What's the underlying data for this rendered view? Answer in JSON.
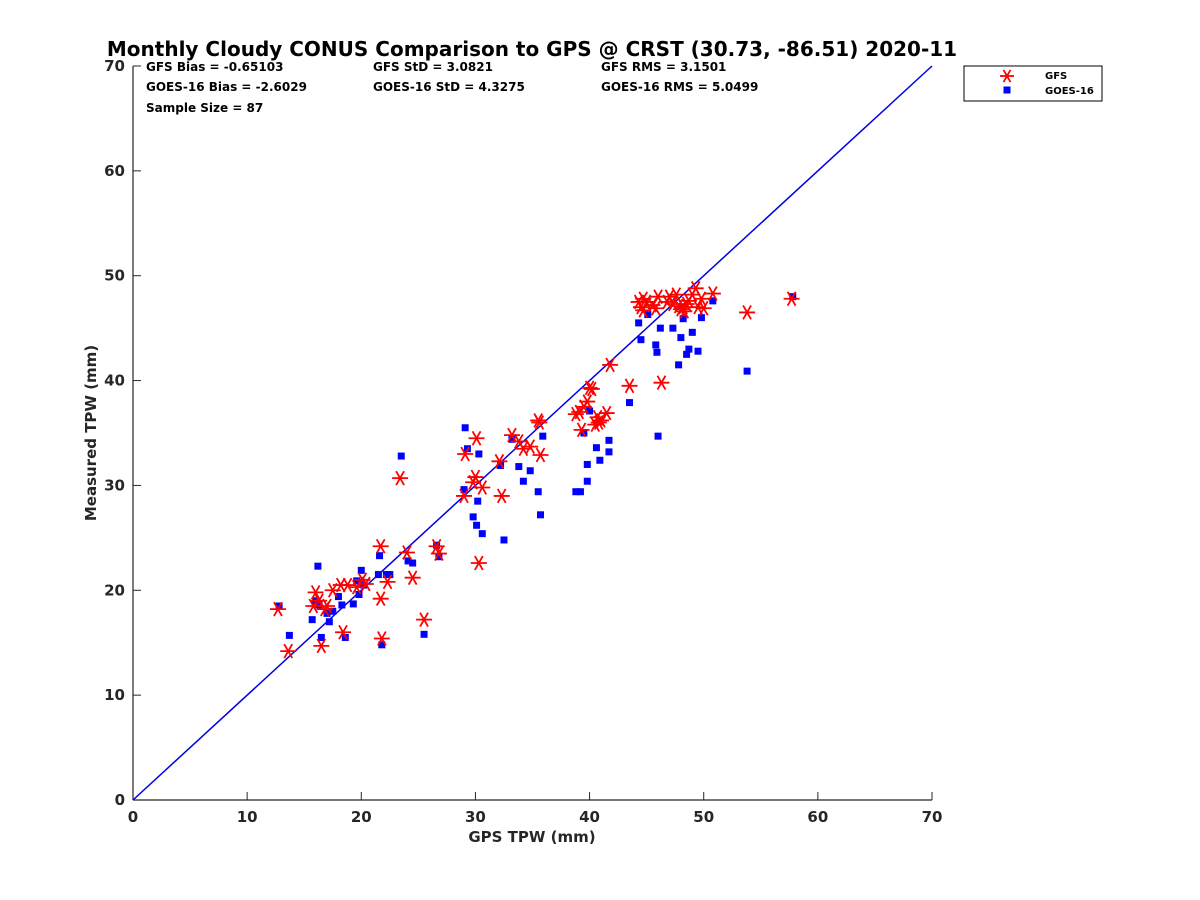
{
  "chart_data": {
    "type": "scatter",
    "title": "Monthly Cloudy CONUS Comparison to GPS @ CRST (30.73, -86.51) 2020-11",
    "xlabel": "GPS TPW (mm)",
    "ylabel": "Measured TPW (mm)",
    "xlim": [
      0,
      70
    ],
    "ylim": [
      0,
      70
    ],
    "xticks": [
      "0",
      "10",
      "20",
      "30",
      "40",
      "50",
      "60",
      "70"
    ],
    "yticks": [
      "0",
      "10",
      "20",
      "30",
      "40",
      "50",
      "60",
      "70"
    ],
    "grid": false,
    "legend_position": "top-right",
    "reference_line": {
      "x": [
        0,
        70
      ],
      "y": [
        0,
        70
      ],
      "color": "#0000e6"
    },
    "stats": [
      "GFS Bias = -0.65103",
      "GFS StD = 3.0821",
      "GFS RMS = 3.1501",
      "GOES-16 Bias = -2.6029",
      "GOES-16 StD = 4.3275",
      "GOES-16 RMS = 5.0499",
      "Sample Size = 87"
    ],
    "series": [
      {
        "name": "GFS",
        "marker": "asterisk",
        "color": "#ff0000",
        "x": [
          12.7,
          13.6,
          15.8,
          16.0,
          16.3,
          16.5,
          16.8,
          17.0,
          17.5,
          18.2,
          18.4,
          18.8,
          19.6,
          20.1,
          20.4,
          21.7,
          21.7,
          21.8,
          22.3,
          23.4,
          24.0,
          24.5,
          25.5,
          26.6,
          26.8,
          29.0,
          29.1,
          29.8,
          30.0,
          30.1,
          30.3,
          30.6,
          32.1,
          32.3,
          33.2,
          33.8,
          34.2,
          34.8,
          35.5,
          35.7,
          35.6,
          38.8,
          39.1,
          39.3,
          39.5,
          39.8,
          40.0,
          40.2,
          40.5,
          40.7,
          40.8,
          41.0,
          41.5,
          41.8,
          43.5,
          44.3,
          44.5,
          44.7,
          44.7,
          45.0,
          45.5,
          45.8,
          46.0,
          46.3,
          46.8,
          47.0,
          47.3,
          47.6,
          47.8,
          48.0,
          48.2,
          48.3,
          48.5,
          48.7,
          49.0,
          49.3,
          49.5,
          49.8,
          50.0,
          50.8,
          53.8,
          57.7
        ],
        "y": [
          18.2,
          14.2,
          18.5,
          19.8,
          19.0,
          14.7,
          18.2,
          18.5,
          20.0,
          20.5,
          16.0,
          20.5,
          20.3,
          21.0,
          20.6,
          24.2,
          19.2,
          15.4,
          20.8,
          30.7,
          23.6,
          21.2,
          17.2,
          24.2,
          23.5,
          29.0,
          33.0,
          30.3,
          30.8,
          34.5,
          22.6,
          29.8,
          32.3,
          29.0,
          34.8,
          34.2,
          33.5,
          33.7,
          36.2,
          32.9,
          36.0,
          36.8,
          37.0,
          35.3,
          37.5,
          38.0,
          39.3,
          39.2,
          35.8,
          36.5,
          36.0,
          36.2,
          36.9,
          41.5,
          39.5,
          47.5,
          47.0,
          46.7,
          47.8,
          47.5,
          47.2,
          46.9,
          48.0,
          39.8,
          47.5,
          48.0,
          47.3,
          48.2,
          47.1,
          46.8,
          47.0,
          46.6,
          47.3,
          47.6,
          48.2,
          48.8,
          47.0,
          47.8,
          46.9,
          48.3,
          46.5,
          47.8
        ]
      },
      {
        "name": "GOES-16",
        "marker": "square",
        "color": "#0000ff",
        "x": [
          12.8,
          13.7,
          15.7,
          16.0,
          16.2,
          16.3,
          16.5,
          17.0,
          17.2,
          17.5,
          18.0,
          18.3,
          18.6,
          19.3,
          19.6,
          19.8,
          20.0,
          20.2,
          21.5,
          21.6,
          21.8,
          22.2,
          22.5,
          23.5,
          24.1,
          24.5,
          25.5,
          26.6,
          26.8,
          29.0,
          29.1,
          29.3,
          29.8,
          30.1,
          30.2,
          30.3,
          30.6,
          32.2,
          32.5,
          33.2,
          33.8,
          34.2,
          34.8,
          35.5,
          35.7,
          35.9,
          38.8,
          39.2,
          39.5,
          39.8,
          39.8,
          40.0,
          40.6,
          40.9,
          41.7,
          41.7,
          43.5,
          44.3,
          44.5,
          45.1,
          45.8,
          45.9,
          46.0,
          46.2,
          47.3,
          47.8,
          48.0,
          48.2,
          48.5,
          48.7,
          49.0,
          49.5,
          49.8,
          50.8,
          53.8,
          57.8
        ],
        "y": [
          18.5,
          15.7,
          17.2,
          19.0,
          22.3,
          18.6,
          15.5,
          17.8,
          17.0,
          18.0,
          19.4,
          18.6,
          15.5,
          18.7,
          20.9,
          19.6,
          21.9,
          20.5,
          21.5,
          23.3,
          14.8,
          21.5,
          21.5,
          32.8,
          22.8,
          22.6,
          15.8,
          24.3,
          23.2,
          29.6,
          35.5,
          33.5,
          27.0,
          26.2,
          28.5,
          33.0,
          25.4,
          31.9,
          24.8,
          34.4,
          31.8,
          30.4,
          31.4,
          29.4,
          27.2,
          34.7,
          29.4,
          29.4,
          35.0,
          32.0,
          30.4,
          37.1,
          33.6,
          32.4,
          34.3,
          33.2,
          37.9,
          45.5,
          43.9,
          46.3,
          43.4,
          42.7,
          34.7,
          45.0,
          45.0,
          41.5,
          44.1,
          45.9,
          42.5,
          43.0,
          44.6,
          42.8,
          46.0,
          47.6,
          40.9,
          48.0
        ]
      }
    ]
  }
}
